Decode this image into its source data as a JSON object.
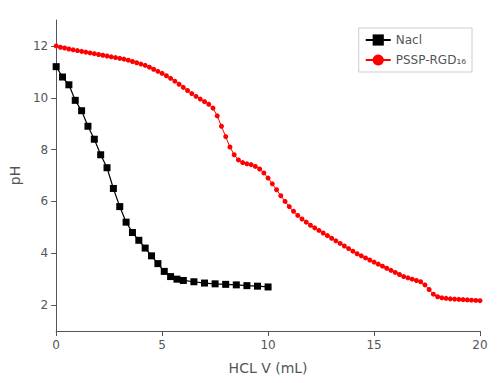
{
  "chart_data": {
    "type": "line",
    "xlabel": "HCL V (mL)",
    "ylabel": "pH",
    "xlim": [
      0,
      20
    ],
    "ylim": [
      1,
      13
    ],
    "xticks": [
      0,
      5,
      10,
      15,
      20
    ],
    "yticks": [
      2,
      4,
      6,
      8,
      10,
      12
    ],
    "grid": false,
    "legend": "upper right",
    "series": [
      {
        "name": "Nacl",
        "color": "#000000",
        "marker": "square",
        "x": [
          0.0,
          0.3,
          0.6,
          0.9,
          1.2,
          1.5,
          1.8,
          2.1,
          2.4,
          2.7,
          3.0,
          3.3,
          3.6,
          3.9,
          4.2,
          4.5,
          4.8,
          5.1,
          5.4,
          5.7,
          6.0,
          6.5,
          7.0,
          7.5,
          8.0,
          8.5,
          9.0,
          9.5,
          10.0
        ],
        "values": [
          11.2,
          10.8,
          10.5,
          9.9,
          9.5,
          8.9,
          8.4,
          7.8,
          7.3,
          6.5,
          5.8,
          5.2,
          4.8,
          4.5,
          4.2,
          3.9,
          3.6,
          3.3,
          3.1,
          3.0,
          2.95,
          2.9,
          2.85,
          2.82,
          2.8,
          2.78,
          2.75,
          2.73,
          2.7
        ]
      },
      {
        "name": "PSSP-RGD₁₆",
        "color": "#ff0000",
        "marker": "circle",
        "x": [
          0.0,
          0.2,
          0.4,
          0.6,
          0.8,
          1.0,
          1.2,
          1.4,
          1.6,
          1.8,
          2.0,
          2.2,
          2.4,
          2.6,
          2.8,
          3.0,
          3.2,
          3.4,
          3.6,
          3.8,
          4.0,
          4.2,
          4.4,
          4.6,
          4.8,
          5.0,
          5.2,
          5.4,
          5.6,
          5.8,
          6.0,
          6.2,
          6.4,
          6.6,
          6.8,
          7.0,
          7.2,
          7.4,
          7.6,
          7.8,
          8.0,
          8.2,
          8.4,
          8.6,
          8.8,
          9.0,
          9.2,
          9.4,
          9.6,
          9.8,
          10.0,
          10.2,
          10.4,
          10.6,
          10.8,
          11.0,
          11.2,
          11.4,
          11.6,
          11.8,
          12.0,
          12.2,
          12.4,
          12.6,
          12.8,
          13.0,
          13.2,
          13.4,
          13.6,
          13.8,
          14.0,
          14.2,
          14.4,
          14.6,
          14.8,
          15.0,
          15.2,
          15.4,
          15.6,
          15.8,
          16.0,
          16.2,
          16.4,
          16.6,
          16.8,
          17.0,
          17.2,
          17.4,
          17.6,
          17.8,
          18.0,
          18.2,
          18.4,
          18.6,
          18.8,
          19.0,
          19.2,
          19.4,
          19.6,
          19.8,
          20.0
        ],
        "values": [
          12.0,
          11.95,
          11.92,
          11.88,
          11.85,
          11.82,
          11.79,
          11.76,
          11.73,
          11.7,
          11.67,
          11.64,
          11.61,
          11.58,
          11.55,
          11.52,
          11.49,
          11.45,
          11.4,
          11.35,
          11.3,
          11.25,
          11.18,
          11.1,
          11.02,
          10.94,
          10.85,
          10.75,
          10.64,
          10.52,
          10.4,
          10.28,
          10.16,
          10.05,
          9.95,
          9.85,
          9.75,
          9.6,
          9.3,
          8.9,
          8.5,
          8.1,
          7.8,
          7.6,
          7.5,
          7.45,
          7.42,
          7.35,
          7.25,
          7.1,
          6.9,
          6.68,
          6.45,
          6.22,
          6.0,
          5.8,
          5.62,
          5.46,
          5.32,
          5.2,
          5.08,
          4.98,
          4.88,
          4.78,
          4.68,
          4.58,
          4.48,
          4.38,
          4.28,
          4.18,
          4.08,
          3.98,
          3.9,
          3.82,
          3.74,
          3.66,
          3.58,
          3.5,
          3.42,
          3.34,
          3.26,
          3.18,
          3.1,
          3.05,
          3.0,
          2.95,
          2.9,
          2.78,
          2.6,
          2.42,
          2.32,
          2.28,
          2.26,
          2.24,
          2.23,
          2.22,
          2.21,
          2.2,
          2.19,
          2.18,
          2.17
        ]
      }
    ]
  }
}
